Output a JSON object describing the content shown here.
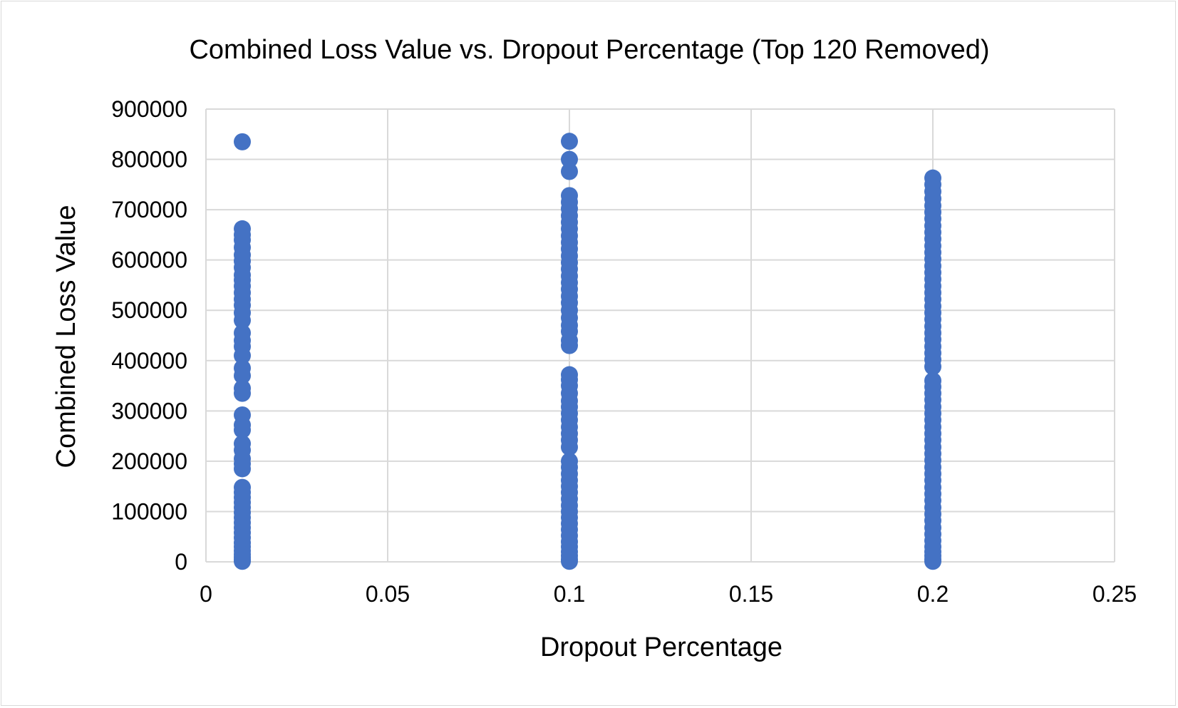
{
  "chart_data": {
    "type": "scatter",
    "title": "Combined Loss Value vs. Dropout Percentage (Top 120 Removed)",
    "xlabel": "Dropout Percentage",
    "ylabel": "Combined Loss Value",
    "xlim": [
      0,
      0.25
    ],
    "ylim": [
      0,
      900000
    ],
    "x_ticks": [
      0,
      0.05,
      0.1,
      0.15,
      0.2,
      0.25
    ],
    "y_ticks": [
      0,
      100000,
      200000,
      300000,
      400000,
      500000,
      600000,
      700000,
      800000,
      900000
    ],
    "grid": true,
    "legend": "none",
    "series": [
      {
        "color": "#4472C4",
        "points": [
          [
            0.01,
            835000
          ],
          [
            0.01,
            662000
          ],
          [
            0.01,
            650000
          ],
          [
            0.01,
            640000
          ],
          [
            0.01,
            625000
          ],
          [
            0.01,
            610000
          ],
          [
            0.01,
            598000
          ],
          [
            0.01,
            585000
          ],
          [
            0.01,
            570000
          ],
          [
            0.01,
            560000
          ],
          [
            0.01,
            548000
          ],
          [
            0.01,
            535000
          ],
          [
            0.01,
            522000
          ],
          [
            0.01,
            510000
          ],
          [
            0.01,
            495000
          ],
          [
            0.01,
            480000
          ],
          [
            0.01,
            455000
          ],
          [
            0.01,
            440000
          ],
          [
            0.01,
            428000
          ],
          [
            0.01,
            410000
          ],
          [
            0.01,
            385000
          ],
          [
            0.01,
            370000
          ],
          [
            0.01,
            345000
          ],
          [
            0.01,
            335000
          ],
          [
            0.01,
            292000
          ],
          [
            0.01,
            272000
          ],
          [
            0.01,
            262000
          ],
          [
            0.01,
            235000
          ],
          [
            0.01,
            222000
          ],
          [
            0.01,
            205000
          ],
          [
            0.01,
            195000
          ],
          [
            0.01,
            185000
          ],
          [
            0.01,
            148000
          ],
          [
            0.01,
            138000
          ],
          [
            0.01,
            128000
          ],
          [
            0.01,
            118000
          ],
          [
            0.01,
            108000
          ],
          [
            0.01,
            98000
          ],
          [
            0.01,
            88000
          ],
          [
            0.01,
            78000
          ],
          [
            0.01,
            68000
          ],
          [
            0.01,
            58000
          ],
          [
            0.01,
            48000
          ],
          [
            0.01,
            38000
          ],
          [
            0.01,
            30000
          ],
          [
            0.01,
            22000
          ],
          [
            0.01,
            15000
          ],
          [
            0.01,
            9000
          ],
          [
            0.01,
            4000
          ],
          [
            0.01,
            1000
          ],
          [
            0.1,
            836000
          ],
          [
            0.1,
            800000
          ],
          [
            0.1,
            776000
          ],
          [
            0.1,
            728000
          ],
          [
            0.1,
            715000
          ],
          [
            0.1,
            702000
          ],
          [
            0.1,
            688000
          ],
          [
            0.1,
            675000
          ],
          [
            0.1,
            662000
          ],
          [
            0.1,
            648000
          ],
          [
            0.1,
            635000
          ],
          [
            0.1,
            622000
          ],
          [
            0.1,
            608000
          ],
          [
            0.1,
            595000
          ],
          [
            0.1,
            582000
          ],
          [
            0.1,
            568000
          ],
          [
            0.1,
            555000
          ],
          [
            0.1,
            542000
          ],
          [
            0.1,
            528000
          ],
          [
            0.1,
            515000
          ],
          [
            0.1,
            500000
          ],
          [
            0.1,
            485000
          ],
          [
            0.1,
            470000
          ],
          [
            0.1,
            458000
          ],
          [
            0.1,
            440000
          ],
          [
            0.1,
            430000
          ],
          [
            0.1,
            372000
          ],
          [
            0.1,
            362000
          ],
          [
            0.1,
            350000
          ],
          [
            0.1,
            335000
          ],
          [
            0.1,
            320000
          ],
          [
            0.1,
            308000
          ],
          [
            0.1,
            295000
          ],
          [
            0.1,
            282000
          ],
          [
            0.1,
            268000
          ],
          [
            0.1,
            255000
          ],
          [
            0.1,
            242000
          ],
          [
            0.1,
            228000
          ],
          [
            0.1,
            200000
          ],
          [
            0.1,
            188000
          ],
          [
            0.1,
            175000
          ],
          [
            0.1,
            162000
          ],
          [
            0.1,
            150000
          ],
          [
            0.1,
            138000
          ],
          [
            0.1,
            125000
          ],
          [
            0.1,
            112000
          ],
          [
            0.1,
            100000
          ],
          [
            0.1,
            88000
          ],
          [
            0.1,
            76000
          ],
          [
            0.1,
            64000
          ],
          [
            0.1,
            52000
          ],
          [
            0.1,
            40000
          ],
          [
            0.1,
            30000
          ],
          [
            0.1,
            20000
          ],
          [
            0.1,
            12000
          ],
          [
            0.1,
            5000
          ],
          [
            0.1,
            1000
          ],
          [
            0.2,
            763000
          ],
          [
            0.2,
            750000
          ],
          [
            0.2,
            736000
          ],
          [
            0.2,
            722000
          ],
          [
            0.2,
            708000
          ],
          [
            0.2,
            695000
          ],
          [
            0.2,
            682000
          ],
          [
            0.2,
            668000
          ],
          [
            0.2,
            655000
          ],
          [
            0.2,
            642000
          ],
          [
            0.2,
            628000
          ],
          [
            0.2,
            615000
          ],
          [
            0.2,
            602000
          ],
          [
            0.2,
            588000
          ],
          [
            0.2,
            575000
          ],
          [
            0.2,
            562000
          ],
          [
            0.2,
            548000
          ],
          [
            0.2,
            535000
          ],
          [
            0.2,
            522000
          ],
          [
            0.2,
            508000
          ],
          [
            0.2,
            495000
          ],
          [
            0.2,
            482000
          ],
          [
            0.2,
            468000
          ],
          [
            0.2,
            455000
          ],
          [
            0.2,
            442000
          ],
          [
            0.2,
            428000
          ],
          [
            0.2,
            415000
          ],
          [
            0.2,
            402000
          ],
          [
            0.2,
            388000
          ],
          [
            0.2,
            360000
          ],
          [
            0.2,
            348000
          ],
          [
            0.2,
            335000
          ],
          [
            0.2,
            322000
          ],
          [
            0.2,
            308000
          ],
          [
            0.2,
            295000
          ],
          [
            0.2,
            282000
          ],
          [
            0.2,
            268000
          ],
          [
            0.2,
            255000
          ],
          [
            0.2,
            242000
          ],
          [
            0.2,
            228000
          ],
          [
            0.2,
            215000
          ],
          [
            0.2,
            202000
          ],
          [
            0.2,
            188000
          ],
          [
            0.2,
            175000
          ],
          [
            0.2,
            162000
          ],
          [
            0.2,
            148000
          ],
          [
            0.2,
            135000
          ],
          [
            0.2,
            122000
          ],
          [
            0.2,
            108000
          ],
          [
            0.2,
            95000
          ],
          [
            0.2,
            82000
          ],
          [
            0.2,
            68000
          ],
          [
            0.2,
            55000
          ],
          [
            0.2,
            42000
          ],
          [
            0.2,
            30000
          ],
          [
            0.2,
            20000
          ],
          [
            0.2,
            12000
          ],
          [
            0.2,
            5000
          ],
          [
            0.2,
            1000
          ]
        ]
      }
    ]
  }
}
